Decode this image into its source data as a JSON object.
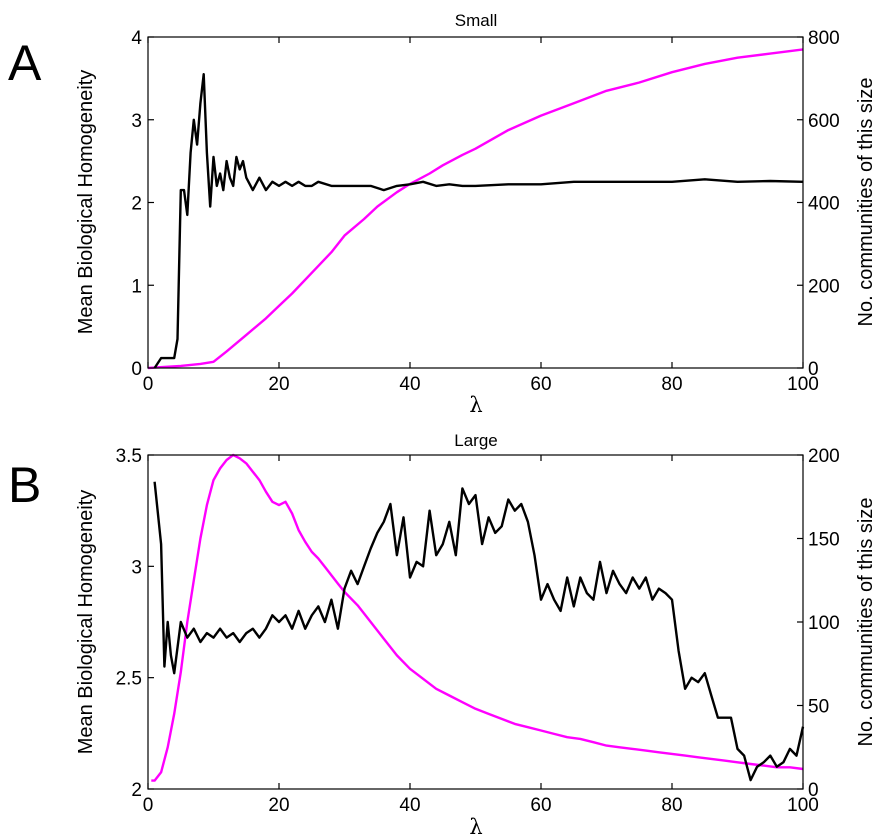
{
  "chart_data": [
    {
      "panel_label": "A",
      "type": "line",
      "title": "Small",
      "xlabel": "λ",
      "ylabel_left": "Mean Biological Homogeneity",
      "ylabel_right": "No. communities of this size",
      "xlim": [
        0,
        100
      ],
      "ylim_left": [
        0,
        4
      ],
      "ylim_right": [
        0,
        800
      ],
      "xticks": [
        0,
        20,
        40,
        60,
        80,
        100
      ],
      "yticks_left": [
        0,
        1,
        2,
        3,
        4
      ],
      "yticks_right": [
        0,
        200,
        400,
        600,
        800
      ],
      "grid": false,
      "series": [
        {
          "axis": "left",
          "color": "#000000",
          "x": [
            1,
            2,
            3,
            4,
            4.5,
            5,
            5.5,
            6,
            6.5,
            7,
            7.5,
            8,
            8.5,
            9,
            9.5,
            10,
            10.5,
            11,
            11.5,
            12,
            12.5,
            13,
            13.5,
            14,
            14.5,
            15,
            16,
            17,
            18,
            19,
            20,
            21,
            22,
            23,
            24,
            25,
            26,
            28,
            30,
            32,
            34,
            36,
            38,
            40,
            42,
            44,
            46,
            48,
            50,
            55,
            60,
            65,
            70,
            75,
            80,
            85,
            90,
            95,
            100
          ],
          "y": [
            0.0,
            0.12,
            0.12,
            0.12,
            0.35,
            2.15,
            2.15,
            1.85,
            2.6,
            3.0,
            2.7,
            3.2,
            3.55,
            2.6,
            1.95,
            2.55,
            2.2,
            2.35,
            2.15,
            2.5,
            2.3,
            2.2,
            2.55,
            2.4,
            2.5,
            2.3,
            2.15,
            2.3,
            2.15,
            2.25,
            2.2,
            2.25,
            2.2,
            2.25,
            2.2,
            2.2,
            2.25,
            2.2,
            2.2,
            2.2,
            2.2,
            2.15,
            2.2,
            2.22,
            2.25,
            2.2,
            2.22,
            2.2,
            2.2,
            2.22,
            2.22,
            2.25,
            2.25,
            2.25,
            2.25,
            2.28,
            2.25,
            2.26,
            2.25
          ]
        },
        {
          "axis": "right",
          "color": "#ff00ff",
          "x": [
            0,
            5,
            8,
            10,
            12,
            15,
            18,
            20,
            22,
            25,
            28,
            30,
            33,
            35,
            38,
            40,
            43,
            45,
            48,
            50,
            55,
            60,
            65,
            70,
            75,
            80,
            85,
            90,
            95,
            100
          ],
          "y": [
            0,
            5,
            10,
            15,
            40,
            80,
            120,
            150,
            180,
            230,
            280,
            320,
            360,
            390,
            425,
            445,
            470,
            490,
            515,
            530,
            575,
            610,
            640,
            670,
            690,
            715,
            735,
            750,
            760,
            770
          ]
        }
      ]
    },
    {
      "panel_label": "B",
      "type": "line",
      "title": "Large",
      "xlabel": "λ",
      "ylabel_left": "Mean Biological Homogeneity",
      "ylabel_right": "No. communities of this size",
      "xlim": [
        0,
        100
      ],
      "ylim_left": [
        2,
        3.5
      ],
      "ylim_right": [
        0,
        200
      ],
      "xticks": [
        0,
        20,
        40,
        60,
        80,
        100
      ],
      "yticks_left": [
        2,
        2.5,
        3,
        3.5
      ],
      "yticks_right": [
        0,
        50,
        100,
        150,
        200
      ],
      "grid": false,
      "series": [
        {
          "axis": "left",
          "color": "#000000",
          "x": [
            1,
            2,
            2.5,
            3,
            3.5,
            4,
            5,
            6,
            7,
            8,
            9,
            10,
            11,
            12,
            13,
            14,
            15,
            16,
            17,
            18,
            19,
            20,
            21,
            22,
            23,
            24,
            25,
            26,
            27,
            28,
            29,
            30,
            31,
            32,
            33,
            34,
            35,
            36,
            37,
            38,
            39,
            40,
            41,
            42,
            43,
            44,
            45,
            46,
            47,
            48,
            49,
            50,
            51,
            52,
            53,
            54,
            55,
            56,
            57,
            58,
            59,
            60,
            61,
            62,
            63,
            64,
            65,
            66,
            67,
            68,
            69,
            70,
            71,
            72,
            73,
            74,
            75,
            76,
            77,
            78,
            79,
            80,
            81,
            82,
            83,
            84,
            85,
            86,
            87,
            88,
            89,
            90,
            91,
            92,
            93,
            94,
            95,
            96,
            97,
            98,
            99,
            100
          ],
          "y": [
            3.38,
            3.1,
            2.55,
            2.75,
            2.6,
            2.52,
            2.75,
            2.68,
            2.72,
            2.66,
            2.7,
            2.68,
            2.72,
            2.68,
            2.7,
            2.66,
            2.7,
            2.72,
            2.68,
            2.72,
            2.78,
            2.75,
            2.78,
            2.72,
            2.8,
            2.72,
            2.78,
            2.82,
            2.75,
            2.85,
            2.72,
            2.9,
            2.98,
            2.92,
            3.0,
            3.08,
            3.15,
            3.2,
            3.28,
            3.05,
            3.22,
            2.95,
            3.02,
            3.0,
            3.25,
            3.05,
            3.1,
            3.2,
            3.05,
            3.35,
            3.28,
            3.32,
            3.1,
            3.22,
            3.15,
            3.18,
            3.3,
            3.25,
            3.28,
            3.2,
            3.05,
            2.85,
            2.92,
            2.85,
            2.8,
            2.95,
            2.82,
            2.95,
            2.88,
            2.85,
            3.02,
            2.88,
            2.98,
            2.92,
            2.88,
            2.95,
            2.9,
            2.95,
            2.85,
            2.9,
            2.88,
            2.85,
            2.62,
            2.45,
            2.5,
            2.48,
            2.52,
            2.42,
            2.32,
            2.32,
            2.32,
            2.18,
            2.15,
            2.04,
            2.1,
            2.12,
            2.15,
            2.1,
            2.12,
            2.18,
            2.15,
            2.28
          ]
        },
        {
          "axis": "right",
          "color": "#ff00ff",
          "x": [
            0.5,
            1,
            2,
            3,
            4,
            5,
            6,
            7,
            8,
            9,
            10,
            11,
            12,
            13,
            14,
            15,
            16,
            17,
            18,
            19,
            20,
            21,
            22,
            23,
            24,
            25,
            26,
            27,
            28,
            29,
            30,
            32,
            34,
            36,
            38,
            40,
            42,
            44,
            46,
            48,
            50,
            52,
            54,
            56,
            58,
            60,
            62,
            64,
            66,
            68,
            70,
            72,
            74,
            76,
            78,
            80,
            82,
            84,
            86,
            88,
            90,
            92,
            94,
            96,
            98,
            100
          ],
          "y": [
            5,
            5,
            10,
            25,
            45,
            70,
            100,
            125,
            150,
            170,
            185,
            192,
            197,
            200,
            198,
            195,
            190,
            185,
            178,
            172,
            170,
            172,
            165,
            155,
            148,
            142,
            138,
            133,
            128,
            123,
            118,
            110,
            100,
            90,
            80,
            72,
            66,
            60,
            56,
            52,
            48,
            45,
            42,
            39,
            37,
            35,
            33,
            31,
            30,
            28,
            26,
            25,
            24,
            23,
            22,
            21,
            20,
            19,
            18,
            17,
            16,
            15,
            14,
            13,
            13,
            12
          ]
        }
      ]
    }
  ]
}
